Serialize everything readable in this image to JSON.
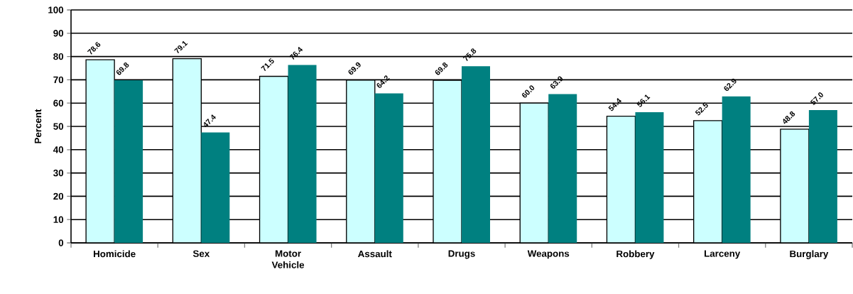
{
  "chart_data": {
    "type": "bar",
    "ylabel": "Percent",
    "categories": [
      "Homicide",
      "Sex",
      "Motor Vehicle",
      "Assault",
      "Drugs",
      "Weapons",
      "Robbery",
      "Larceny",
      "Burglary"
    ],
    "series": [
      {
        "color": "#ccffff",
        "values": [
          78.6,
          79.1,
          71.5,
          69.9,
          69.8,
          60.0,
          54.4,
          52.5,
          48.8
        ],
        "value_labels": [
          "78.6",
          "79.1",
          "71.5",
          "69.9",
          "69.8",
          "60.0",
          "54.4",
          "52.5",
          "48.8"
        ]
      },
      {
        "color": "#008080",
        "values": [
          69.8,
          47.4,
          76.4,
          64.2,
          75.8,
          63.9,
          56.1,
          62.9,
          57.0
        ],
        "value_labels": [
          "69.8",
          "47.4",
          "76.4",
          "64.2",
          "75.8",
          "63.9",
          "56.1",
          "62.9",
          "57.0"
        ]
      }
    ],
    "ylim": [
      0,
      100
    ],
    "yticks": [
      0,
      10,
      20,
      30,
      40,
      50,
      60,
      70,
      80,
      90,
      100
    ],
    "grid": "y"
  }
}
